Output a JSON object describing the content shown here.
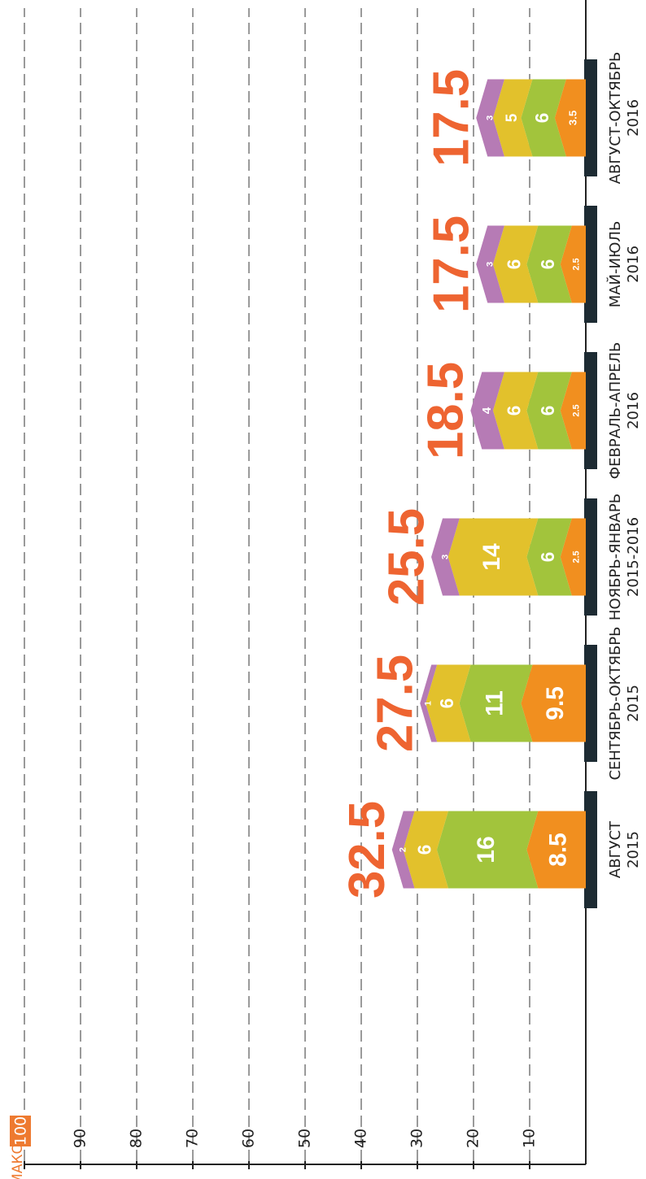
{
  "chart_data": {
    "type": "stacked_bar",
    "annotation": "МАКС.",
    "categories": [
      [
        "АВГУСТ",
        "2015"
      ],
      [
        "СЕНТЯБРЬ-ОКТЯБРЬ",
        "2015"
      ],
      [
        "НОЯБРЬ-ЯНВАРЬ",
        "2015-2016"
      ],
      [
        "ФЕВРАЛЬ-АПРЕЛЬ",
        "2016"
      ],
      [
        "МАЙ-ИЮЛЬ",
        "2016"
      ],
      [
        "АВГУСТ-ОКТЯБРЬ",
        "2016"
      ]
    ],
    "series": [
      {
        "color": "#f18f1f",
        "values": [
          8.5,
          9.5,
          2.5,
          2.5,
          2.5,
          3.5
        ]
      },
      {
        "color": "#a2c43c",
        "values": [
          16,
          11,
          6,
          6,
          6,
          6
        ]
      },
      {
        "color": "#e2c12c",
        "values": [
          6,
          6,
          14,
          6,
          6,
          5
        ]
      },
      {
        "color": "#b67bb5",
        "values": [
          2,
          1,
          3,
          4,
          3,
          3
        ]
      }
    ],
    "totals": [
      32.5,
      27.5,
      25.5,
      18.5,
      17.5,
      17.5
    ],
    "totals_color": "#ee6431",
    "ylim": [
      0,
      100
    ],
    "yticks": [
      10,
      20,
      30,
      40,
      50,
      60,
      70,
      80,
      90,
      100
    ],
    "grid": true
  }
}
